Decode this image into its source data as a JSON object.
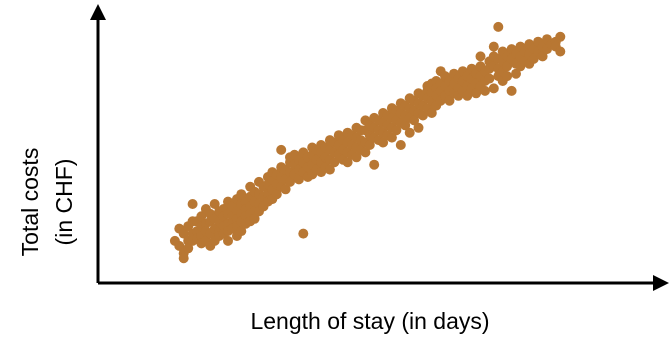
{
  "colors": {
    "point": "#B87733",
    "axis": "#000000",
    "background": "#ffffff"
  },
  "chart_data": {
    "type": "scatter",
    "title": "",
    "xlabel": "Length of stay (in days)",
    "ylabel_line1": "Total costs",
    "ylabel_line2": "(in CHF)",
    "xlim": [
      0,
      100
    ],
    "ylim": [
      0,
      100
    ],
    "grid": false,
    "legend": "none",
    "tick_labels": false,
    "series": [
      {
        "points": [
          [
            9,
            11
          ],
          [
            10,
            16
          ],
          [
            10,
            9
          ],
          [
            11,
            14
          ],
          [
            11,
            6
          ],
          [
            11,
            4
          ],
          [
            12,
            17
          ],
          [
            12,
            11
          ],
          [
            12,
            8
          ],
          [
            13,
            19
          ],
          [
            13,
            14
          ],
          [
            13,
            11
          ],
          [
            13,
            26
          ],
          [
            14,
            19
          ],
          [
            14,
            15
          ],
          [
            14,
            12
          ],
          [
            15,
            21
          ],
          [
            15,
            17
          ],
          [
            15,
            13
          ],
          [
            15,
            10
          ],
          [
            16,
            24
          ],
          [
            16,
            18
          ],
          [
            16,
            15
          ],
          [
            16,
            11
          ],
          [
            17,
            22
          ],
          [
            17,
            19
          ],
          [
            17,
            14
          ],
          [
            17,
            9
          ],
          [
            18,
            20
          ],
          [
            18,
            16
          ],
          [
            18,
            26
          ],
          [
            18,
            11
          ],
          [
            19,
            23
          ],
          [
            19,
            19
          ],
          [
            19,
            15
          ],
          [
            19,
            13
          ],
          [
            20,
            24
          ],
          [
            20,
            21
          ],
          [
            20,
            17
          ],
          [
            20,
            14
          ],
          [
            21,
            27
          ],
          [
            21,
            22
          ],
          [
            21,
            18
          ],
          [
            21,
            15
          ],
          [
            21,
            11
          ],
          [
            22,
            25
          ],
          [
            22,
            21
          ],
          [
            22,
            18
          ],
          [
            22,
            16
          ],
          [
            23,
            28
          ],
          [
            23,
            23
          ],
          [
            23,
            20
          ],
          [
            23,
            17
          ],
          [
            23,
            13
          ],
          [
            24,
            30
          ],
          [
            24,
            26
          ],
          [
            24,
            22
          ],
          [
            24,
            19
          ],
          [
            24,
            15
          ],
          [
            25,
            27
          ],
          [
            25,
            24
          ],
          [
            25,
            21
          ],
          [
            25,
            18
          ],
          [
            26,
            33
          ],
          [
            26,
            29
          ],
          [
            26,
            25
          ],
          [
            26,
            22
          ],
          [
            26,
            19
          ],
          [
            27,
            31
          ],
          [
            27,
            27
          ],
          [
            27,
            23
          ],
          [
            27,
            20
          ],
          [
            28,
            35
          ],
          [
            28,
            30
          ],
          [
            28,
            26
          ],
          [
            28,
            23
          ],
          [
            29,
            33
          ],
          [
            29,
            29
          ],
          [
            29,
            25
          ],
          [
            30,
            37
          ],
          [
            30,
            34
          ],
          [
            30,
            30
          ],
          [
            30,
            27
          ],
          [
            31,
            36
          ],
          [
            31,
            32
          ],
          [
            31,
            28
          ],
          [
            31,
            39
          ],
          [
            32,
            38
          ],
          [
            32,
            34
          ],
          [
            32,
            30
          ],
          [
            33,
            41
          ],
          [
            33,
            37
          ],
          [
            33,
            33
          ],
          [
            33,
            48
          ],
          [
            34,
            40
          ],
          [
            34,
            36
          ],
          [
            34,
            32
          ],
          [
            35,
            43
          ],
          [
            35,
            39
          ],
          [
            35,
            35
          ],
          [
            35,
            45
          ],
          [
            36,
            42
          ],
          [
            36,
            38
          ],
          [
            36,
            46
          ],
          [
            37,
            44
          ],
          [
            37,
            40
          ],
          [
            37,
            36
          ],
          [
            38,
            47
          ],
          [
            38,
            43
          ],
          [
            38,
            39
          ],
          [
            38,
            14
          ],
          [
            39,
            45
          ],
          [
            39,
            41
          ],
          [
            39,
            37
          ],
          [
            40,
            49
          ],
          [
            40,
            46
          ],
          [
            40,
            42
          ],
          [
            40,
            38
          ],
          [
            41,
            48
          ],
          [
            41,
            44
          ],
          [
            41,
            40
          ],
          [
            42,
            50
          ],
          [
            42,
            47
          ],
          [
            42,
            43
          ],
          [
            42,
            39
          ],
          [
            43,
            49
          ],
          [
            43,
            45
          ],
          [
            43,
            41
          ],
          [
            44,
            52
          ],
          [
            44,
            48
          ],
          [
            44,
            44
          ],
          [
            44,
            40
          ],
          [
            45,
            51
          ],
          [
            45,
            47
          ],
          [
            45,
            43
          ],
          [
            46,
            54
          ],
          [
            46,
            50
          ],
          [
            46,
            46
          ],
          [
            47,
            52
          ],
          [
            47,
            48
          ],
          [
            47,
            44
          ],
          [
            48,
            55
          ],
          [
            48,
            51
          ],
          [
            48,
            47
          ],
          [
            48,
            43
          ],
          [
            49,
            54
          ],
          [
            49,
            50
          ],
          [
            49,
            46
          ],
          [
            50,
            57
          ],
          [
            50,
            53
          ],
          [
            50,
            49
          ],
          [
            50,
            45
          ],
          [
            51,
            56
          ],
          [
            51,
            52
          ],
          [
            51,
            48
          ],
          [
            52,
            60
          ],
          [
            52,
            56
          ],
          [
            52,
            51
          ],
          [
            52,
            47
          ],
          [
            53,
            58
          ],
          [
            53,
            54
          ],
          [
            53,
            50
          ],
          [
            54,
            61
          ],
          [
            54,
            57
          ],
          [
            54,
            53
          ],
          [
            54,
            42
          ],
          [
            55,
            60
          ],
          [
            55,
            56
          ],
          [
            55,
            52
          ],
          [
            56,
            63
          ],
          [
            56,
            59
          ],
          [
            56,
            55
          ],
          [
            56,
            51
          ],
          [
            57,
            62
          ],
          [
            57,
            58
          ],
          [
            57,
            54
          ],
          [
            58,
            65
          ],
          [
            58,
            61
          ],
          [
            58,
            57
          ],
          [
            58,
            53
          ],
          [
            59,
            64
          ],
          [
            59,
            60
          ],
          [
            59,
            56
          ],
          [
            60,
            67
          ],
          [
            60,
            63
          ],
          [
            60,
            59
          ],
          [
            60,
            50
          ],
          [
            61,
            66
          ],
          [
            61,
            62
          ],
          [
            61,
            58
          ],
          [
            62,
            69
          ],
          [
            62,
            65
          ],
          [
            62,
            61
          ],
          [
            62,
            55
          ],
          [
            63,
            68
          ],
          [
            63,
            64
          ],
          [
            63,
            60
          ],
          [
            64,
            71
          ],
          [
            64,
            67
          ],
          [
            64,
            63
          ],
          [
            64,
            57
          ],
          [
            65,
            70
          ],
          [
            65,
            66
          ],
          [
            65,
            62
          ],
          [
            66,
            74
          ],
          [
            66,
            72
          ],
          [
            66,
            69
          ],
          [
            66,
            65
          ],
          [
            67,
            75
          ],
          [
            67,
            71
          ],
          [
            67,
            68
          ],
          [
            67,
            63
          ],
          [
            68,
            76
          ],
          [
            68,
            73
          ],
          [
            68,
            70
          ],
          [
            68,
            66
          ],
          [
            69,
            80
          ],
          [
            69,
            75
          ],
          [
            69,
            72
          ],
          [
            69,
            68
          ],
          [
            70,
            78
          ],
          [
            70,
            74
          ],
          [
            70,
            70
          ],
          [
            71,
            76
          ],
          [
            71,
            72
          ],
          [
            71,
            68
          ],
          [
            72,
            79
          ],
          [
            72,
            75
          ],
          [
            72,
            71
          ],
          [
            73,
            77
          ],
          [
            73,
            73
          ],
          [
            73,
            70
          ],
          [
            74,
            80
          ],
          [
            74,
            76
          ],
          [
            74,
            72
          ],
          [
            75,
            78
          ],
          [
            75,
            74
          ],
          [
            75,
            70
          ],
          [
            76,
            81
          ],
          [
            76,
            77
          ],
          [
            76,
            73
          ],
          [
            77,
            79
          ],
          [
            77,
            75
          ],
          [
            77,
            71
          ],
          [
            78,
            86
          ],
          [
            78,
            82
          ],
          [
            78,
            78
          ],
          [
            78,
            74
          ],
          [
            79,
            80
          ],
          [
            79,
            76
          ],
          [
            79,
            72
          ],
          [
            80,
            84
          ],
          [
            80,
            81
          ],
          [
            80,
            77
          ],
          [
            81,
            90
          ],
          [
            81,
            86
          ],
          [
            81,
            82
          ],
          [
            81,
            73
          ],
          [
            82,
            85
          ],
          [
            82,
            81
          ],
          [
            82,
            78
          ],
          [
            82,
            98
          ],
          [
            83,
            88
          ],
          [
            83,
            84
          ],
          [
            83,
            80
          ],
          [
            83,
            76
          ],
          [
            84,
            86
          ],
          [
            84,
            82
          ],
          [
            84,
            78
          ],
          [
            85,
            89
          ],
          [
            85,
            85
          ],
          [
            85,
            72
          ],
          [
            86,
            87
          ],
          [
            86,
            83
          ],
          [
            86,
            79
          ],
          [
            87,
            90
          ],
          [
            87,
            86
          ],
          [
            87,
            82
          ],
          [
            88,
            88
          ],
          [
            88,
            84
          ],
          [
            89,
            91
          ],
          [
            89,
            87
          ],
          [
            89,
            83
          ],
          [
            90,
            89
          ],
          [
            90,
            85
          ],
          [
            91,
            92
          ],
          [
            91,
            88
          ],
          [
            92,
            90
          ],
          [
            92,
            86
          ],
          [
            93,
            93
          ],
          [
            93,
            89
          ],
          [
            94,
            91
          ],
          [
            95,
            92
          ],
          [
            95,
            90
          ],
          [
            96,
            94
          ],
          [
            96,
            88
          ]
        ]
      }
    ]
  }
}
